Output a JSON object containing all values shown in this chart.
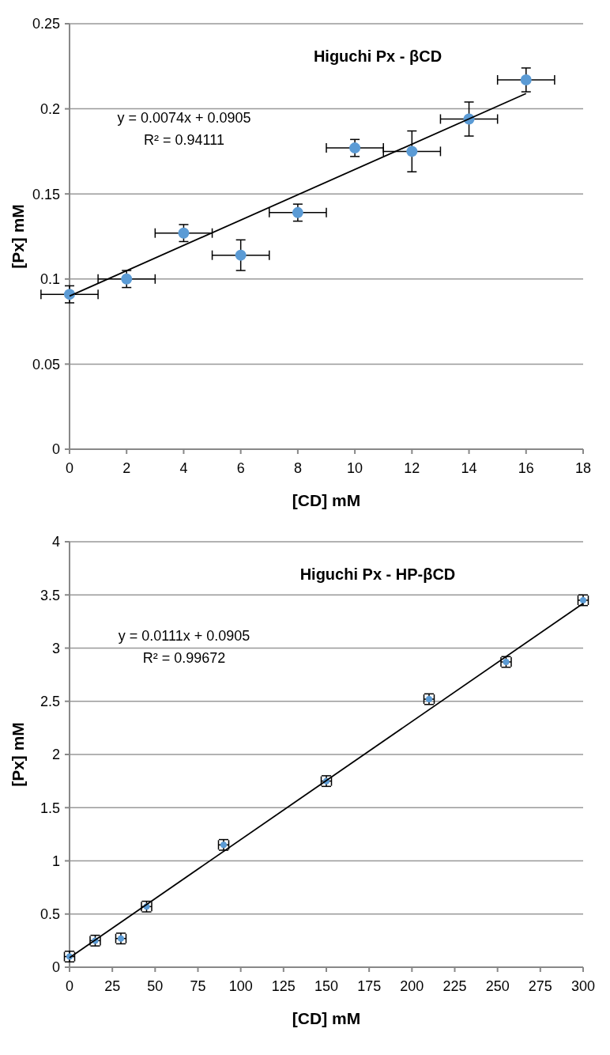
{
  "chart_data": [
    {
      "type": "scatter",
      "title": "Higuchi   Px - βCD",
      "xlabel": "[CD] mM",
      "ylabel": "[Px] mM",
      "annotations": [
        "y = 0.0074x + 0.0905",
        "R² = 0.94111"
      ],
      "xlim": [
        0,
        18
      ],
      "ylim": [
        0,
        0.25
      ],
      "xticks": [
        0,
        2,
        4,
        6,
        8,
        10,
        12,
        14,
        16,
        18
      ],
      "yticks": [
        0,
        0.05,
        0.1,
        0.15,
        0.2,
        0.25
      ],
      "grid": "y",
      "series": [
        {
          "color": "#5b9bd5",
          "marker": "circle",
          "x": [
            0,
            2,
            4,
            6,
            8,
            10,
            12,
            14,
            16
          ],
          "values": [
            0.091,
            0.1,
            0.127,
            0.114,
            0.139,
            0.177,
            0.175,
            0.194,
            0.217
          ],
          "errors": [
            0.005,
            0.005,
            0.005,
            0.009,
            0.005,
            0.005,
            0.012,
            0.01,
            0.007
          ],
          "xerrors": [
            1,
            1,
            1,
            1,
            1,
            1,
            1,
            1,
            1
          ]
        },
        {
          "type": "line",
          "color": "#000000",
          "x": [
            0,
            16
          ],
          "values": [
            0.09,
            0.209
          ]
        }
      ]
    },
    {
      "type": "scatter",
      "title": "Higuchi   Px - HP-βCD",
      "xlabel": "[CD] mM",
      "ylabel": "[Px] mM",
      "annotations": [
        "y = 0.0111x + 0.0905",
        "R² = 0.99672"
      ],
      "xlim": [
        0,
        300
      ],
      "ylim": [
        0,
        4
      ],
      "xticks": [
        0,
        25,
        50,
        75,
        100,
        125,
        150,
        175,
        200,
        225,
        250,
        275,
        300
      ],
      "yticks": [
        0,
        0.5,
        1,
        1.5,
        2,
        2.5,
        3,
        3.5,
        4
      ],
      "grid": "y",
      "series": [
        {
          "color": "#5b9bd5",
          "marker": "circle",
          "x": [
            0,
            15,
            30,
            45,
            90,
            150,
            210,
            255,
            300
          ],
          "values": [
            0.1,
            0.25,
            0.27,
            0.57,
            1.15,
            1.75,
            2.52,
            2.87,
            3.45
          ],
          "errors": [
            0.05,
            0.05,
            0.05,
            0.05,
            0.05,
            0.05,
            0.05,
            0.05,
            0.05
          ],
          "xerrors": [
            3,
            3,
            3,
            3,
            3,
            3,
            3,
            3,
            3
          ]
        },
        {
          "type": "line",
          "color": "#000000",
          "x": [
            0,
            300
          ],
          "values": [
            0.09,
            3.42
          ]
        }
      ]
    }
  ]
}
